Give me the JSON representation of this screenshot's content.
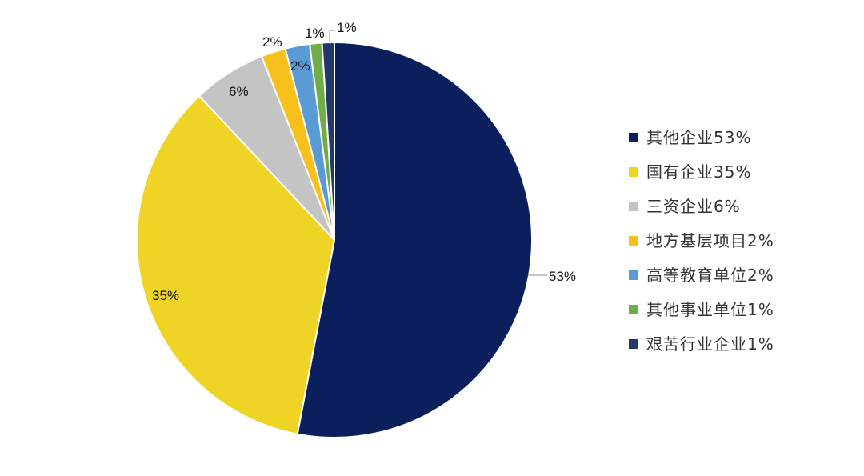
{
  "chart_data": {
    "type": "pie",
    "legend_position": "right",
    "slices": [
      {
        "name": "其他企业",
        "value": 53,
        "data_label": "53%",
        "legend_label": "其他企业53%",
        "color": "#0a1f5c"
      },
      {
        "name": "国有企业",
        "value": 35,
        "data_label": "35%",
        "legend_label": "国有企业35%",
        "color": "#efd325"
      },
      {
        "name": "三资企业",
        "value": 6,
        "data_label": "6%",
        "legend_label": "三资企业6%",
        "color": "#c4c4c4"
      },
      {
        "name": "地方基层项目",
        "value": 2,
        "data_label": "2%",
        "legend_label": "地方基层项目2%",
        "color": "#f7c01a"
      },
      {
        "name": "高等教育单位",
        "value": 2,
        "data_label": "2%",
        "legend_label": "高等教育单位2%",
        "color": "#5b9bd5"
      },
      {
        "name": "其他事业单位",
        "value": 1,
        "data_label": "1%",
        "legend_label": "其他事业单位1%",
        "color": "#70ad47"
      },
      {
        "name": "艰苦行业企业",
        "value": 1,
        "data_label": "1%",
        "legend_label": "艰苦行业企业1%",
        "color": "#23376b"
      }
    ]
  }
}
